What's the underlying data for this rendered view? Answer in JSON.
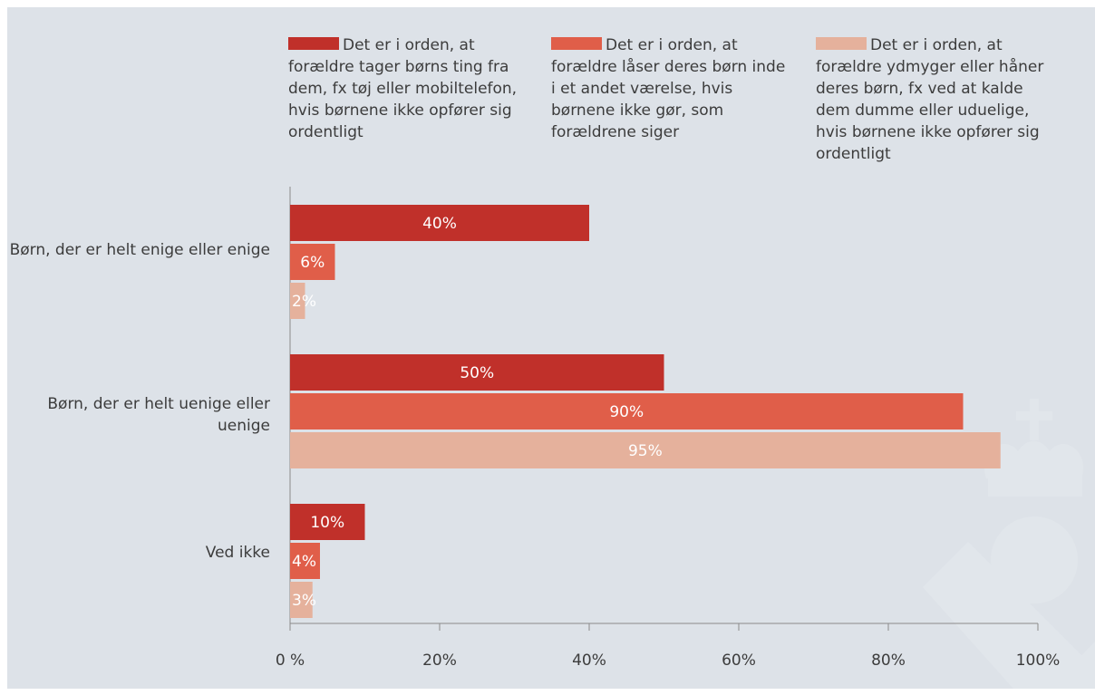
{
  "chart_data": {
    "type": "bar",
    "orientation": "horizontal",
    "categories": [
      "Børn, der er helt enige eller enige",
      "Børn, der er helt uenige eller uenige",
      "Ved ikke"
    ],
    "series": [
      {
        "name": "Det er i orden, at forældre tager børns ting fra dem, fx tøj eller mobiltelefon, hvis børnene ikke opfører sig ordentligt",
        "color": "#c0302a",
        "values": [
          40,
          50,
          10
        ],
        "labels": [
          "40%",
          "50%",
          "10%"
        ]
      },
      {
        "name": "Det er i orden, at forældre låser deres børn inde i et andet værelse, hvis børnene ikke gør, som forældrene siger",
        "color": "#e05e49",
        "values": [
          6,
          90,
          4
        ],
        "labels": [
          "6%",
          "90%",
          "4%"
        ]
      },
      {
        "name": "Det er i orden, at forældre ydmyger eller håner deres børn, fx ved at kalde dem dumme eller uduelige, hvis børnene ikke opfører sig ordentligt",
        "color": "#e5b19c",
        "values": [
          2,
          95,
          3
        ],
        "labels": [
          "2%",
          "95%",
          "3%"
        ]
      }
    ],
    "xlim": [
      0,
      100
    ],
    "xticks": [
      0,
      20,
      40,
      60,
      80,
      100
    ],
    "xtick_labels": [
      "0 %",
      "20%",
      "40%",
      "60%",
      "80%",
      "100%"
    ],
    "grid": false,
    "legend_position": "top",
    "title": "",
    "xlabel": "",
    "ylabel": ""
  },
  "colors": {
    "background": "#dde2e8",
    "axis": "#8a8a8a",
    "text": "#3c3c3c",
    "inside_label": "#ffffff"
  },
  "watermark": "crown-logo"
}
